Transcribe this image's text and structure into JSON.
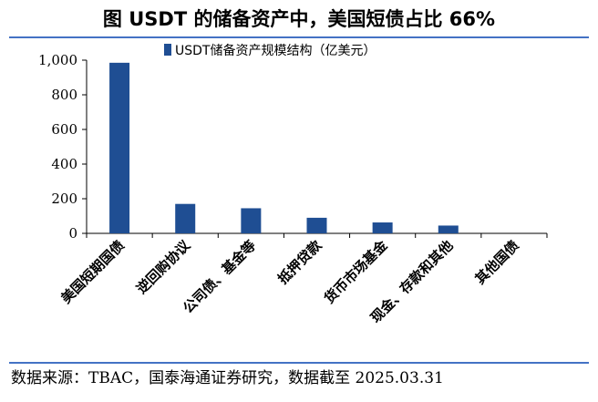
{
  "header": {
    "title": "图  USDT 的储备资产中，美国短债占比 66%"
  },
  "footer": {
    "source": "数据来源：TBAC，国泰海通证券研究，数据截至 2025.03.31"
  },
  "colors": {
    "bar": "#1f4e93",
    "rule": "#4472c4"
  },
  "chart_data": {
    "type": "bar",
    "title": "",
    "xlabel": "",
    "ylabel": "",
    "categories": [
      "美国短期国债",
      "逆回购协议",
      "公司债、基金等",
      "抵押贷款",
      "货币市场基金",
      "现金、存款和其他",
      "其他国债"
    ],
    "series": [
      {
        "name": "USDT储备资产规模结构（亿美元）",
        "values": [
          985,
          170,
          145,
          90,
          63,
          45,
          0
        ]
      }
    ],
    "ylim": [
      0,
      1000
    ],
    "yticks": [
      0,
      200,
      400,
      600,
      800,
      1000
    ],
    "ytick_labels": [
      "0",
      "200",
      "400",
      "600",
      "800",
      "1,000"
    ],
    "grid": false,
    "legend_position": "top"
  }
}
